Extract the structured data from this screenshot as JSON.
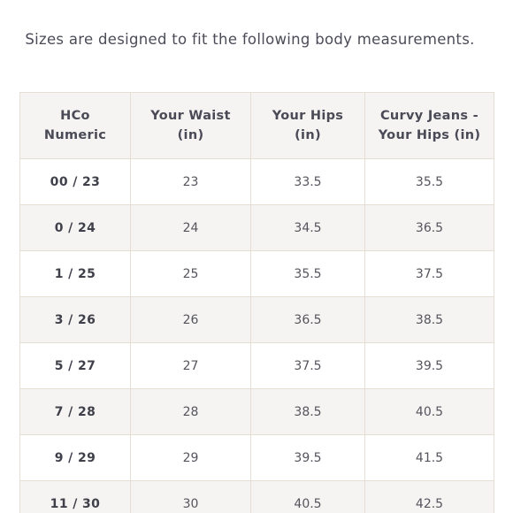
{
  "intro_text": "Sizes are designed to fit the following body measurements.",
  "table": {
    "headers": [
      [
        "HCo",
        "Numeric"
      ],
      [
        "Your Waist",
        "(in)"
      ],
      [
        "Your Hips",
        "(in)"
      ],
      [
        "Curvy Jeans -",
        "Your Hips (in)"
      ]
    ],
    "rows": [
      {
        "size": "00 / 23",
        "waist": "23",
        "hips": "33.5",
        "curvy_hips": "35.5"
      },
      {
        "size": "0 / 24",
        "waist": "24",
        "hips": "34.5",
        "curvy_hips": "36.5"
      },
      {
        "size": "1 / 25",
        "waist": "25",
        "hips": "35.5",
        "curvy_hips": "37.5"
      },
      {
        "size": "3 / 26",
        "waist": "26",
        "hips": "36.5",
        "curvy_hips": "38.5"
      },
      {
        "size": "5 / 27",
        "waist": "27",
        "hips": "37.5",
        "curvy_hips": "39.5"
      },
      {
        "size": "7 / 28",
        "waist": "28",
        "hips": "38.5",
        "curvy_hips": "40.5"
      },
      {
        "size": "9 / 29",
        "waist": "29",
        "hips": "39.5",
        "curvy_hips": "41.5"
      },
      {
        "size": "11 / 30",
        "waist": "30",
        "hips": "40.5",
        "curvy_hips": "42.5"
      }
    ]
  }
}
